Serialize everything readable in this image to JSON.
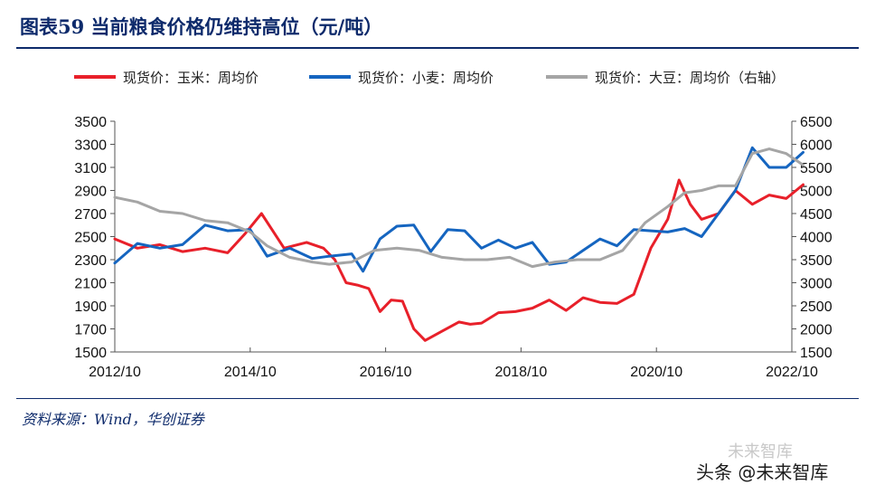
{
  "header": {
    "title": "图表59  当前粮食价格仍维持高位（元/吨）"
  },
  "source": "资料来源：Wind，华创证券",
  "watermarks": {
    "line1": "未来智库",
    "line2": "头条 @未来智库"
  },
  "chart_data": {
    "type": "line",
    "title": "",
    "x_ticks": [
      "2012/10",
      "2014/10",
      "2016/10",
      "2018/10",
      "2020/10",
      "2022/10"
    ],
    "xlim": [
      "2012/10",
      "2022/10"
    ],
    "y_left": {
      "ticks": [
        1500,
        1700,
        1900,
        2100,
        2300,
        2500,
        2700,
        2900,
        3100,
        3300,
        3500
      ],
      "ylim": [
        1500,
        3500
      ]
    },
    "y_right": {
      "ticks": [
        1500,
        2000,
        2500,
        3000,
        3500,
        4000,
        4500,
        5000,
        5500,
        6000,
        6500
      ],
      "ylim": [
        1500,
        6500
      ]
    },
    "grid": false,
    "legend_position": "top",
    "series": [
      {
        "name": "现货价：玉米：周均价",
        "axis": "left",
        "color": "#e8202a",
        "x": [
          "2012/10",
          "2013/02",
          "2013/06",
          "2013/10",
          "2014/02",
          "2014/06",
          "2014/09",
          "2014/12",
          "2015/04",
          "2015/08",
          "2015/11",
          "2016/01",
          "2016/03",
          "2016/05",
          "2016/07",
          "2016/09",
          "2016/11",
          "2017/01",
          "2017/03",
          "2017/05",
          "2017/08",
          "2017/11",
          "2018/01",
          "2018/03",
          "2018/06",
          "2018/09",
          "2018/12",
          "2019/03",
          "2019/06",
          "2019/09",
          "2019/12",
          "2020/03",
          "2020/06",
          "2020/09",
          "2020/12",
          "2021/02",
          "2021/04",
          "2021/06",
          "2021/09",
          "2021/12",
          "2022/03",
          "2022/06",
          "2022/09",
          "2022/12"
        ],
        "values": [
          2480,
          2400,
          2430,
          2370,
          2400,
          2360,
          2520,
          2700,
          2400,
          2450,
          2400,
          2300,
          2100,
          2080,
          2050,
          1850,
          1950,
          1940,
          1700,
          1600,
          1680,
          1760,
          1740,
          1750,
          1840,
          1850,
          1880,
          1950,
          1860,
          1970,
          1930,
          1920,
          2000,
          2400,
          2650,
          2990,
          2780,
          2650,
          2700,
          2900,
          2780,
          2860,
          2830,
          2950
        ]
      },
      {
        "name": "现货价：小麦：周均价",
        "axis": "left",
        "color": "#1565c0",
        "x": [
          "2012/10",
          "2013/02",
          "2013/06",
          "2013/10",
          "2014/02",
          "2014/06",
          "2014/10",
          "2015/01",
          "2015/05",
          "2015/09",
          "2015/12",
          "2016/04",
          "2016/06",
          "2016/09",
          "2016/12",
          "2017/03",
          "2017/06",
          "2017/09",
          "2017/12",
          "2018/03",
          "2018/06",
          "2018/09",
          "2018/12",
          "2019/03",
          "2019/06",
          "2019/09",
          "2019/12",
          "2020/03",
          "2020/06",
          "2020/09",
          "2020/12",
          "2021/03",
          "2021/06",
          "2021/09",
          "2021/12",
          "2022/03",
          "2022/06",
          "2022/09",
          "2022/12"
        ],
        "values": [
          2270,
          2440,
          2400,
          2430,
          2600,
          2550,
          2560,
          2330,
          2400,
          2310,
          2330,
          2350,
          2200,
          2480,
          2590,
          2600,
          2370,
          2560,
          2550,
          2400,
          2470,
          2400,
          2450,
          2260,
          2280,
          2380,
          2480,
          2420,
          2560,
          2550,
          2540,
          2570,
          2500,
          2700,
          2900,
          3270,
          3100,
          3100,
          3230
        ]
      },
      {
        "name": "现货价：大豆：周均价（右轴）",
        "axis": "right",
        "color": "#a5a5a5",
        "x": [
          "2012/10",
          "2013/02",
          "2013/06",
          "2013/10",
          "2014/02",
          "2014/06",
          "2014/10",
          "2015/01",
          "2015/05",
          "2015/09",
          "2015/12",
          "2016/04",
          "2016/08",
          "2016/12",
          "2017/04",
          "2017/08",
          "2017/12",
          "2018/04",
          "2018/08",
          "2018/12",
          "2019/04",
          "2019/08",
          "2019/12",
          "2020/04",
          "2020/08",
          "2020/12",
          "2021/03",
          "2021/06",
          "2021/09",
          "2021/12",
          "2022/03",
          "2022/06",
          "2022/09",
          "2022/12"
        ],
        "values": [
          4850,
          4750,
          4550,
          4500,
          4350,
          4300,
          4100,
          3800,
          3550,
          3450,
          3400,
          3450,
          3700,
          3750,
          3700,
          3550,
          3500,
          3500,
          3550,
          3350,
          3450,
          3500,
          3500,
          3700,
          4300,
          4650,
          4950,
          5000,
          5100,
          5100,
          5800,
          5900,
          5800,
          5550
        ]
      }
    ]
  }
}
